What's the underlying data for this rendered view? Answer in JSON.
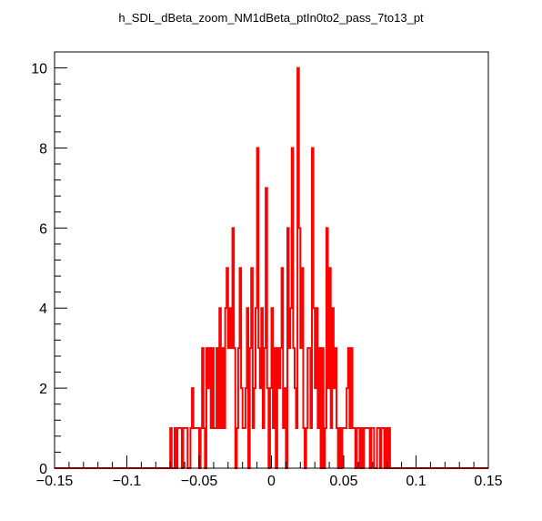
{
  "chart_data": {
    "type": "histogram",
    "title": "h_SDL_dBeta_zoom_NM1dBeta_ptIn0to2_pass_7to13_pt",
    "xlabel": "",
    "ylabel": "",
    "xlim": [
      -0.15,
      0.15
    ],
    "ylim": [
      0,
      10.4
    ],
    "grid": false,
    "legend": "none",
    "line_color": "#ff0000",
    "x_ticks": [
      -0.15,
      -0.1,
      -0.05,
      0,
      0.05,
      0.1,
      0.15
    ],
    "x_tick_labels": [
      "−0.15",
      "−0.1",
      "−0.05",
      "0",
      "0.05",
      "0.1",
      "0.15"
    ],
    "y_ticks": [
      0,
      2,
      4,
      6,
      8,
      10
    ],
    "y_tick_labels": [
      "0",
      "2",
      "4",
      "6",
      "8",
      "10"
    ],
    "bin_width": 0.001,
    "bin_start": -0.07,
    "counts": [
      1,
      0,
      0,
      1,
      0,
      1,
      1,
      1,
      0,
      1,
      1,
      1,
      0,
      0,
      1,
      2,
      1,
      1,
      1,
      1,
      0,
      1,
      3,
      1,
      0,
      3,
      2,
      3,
      1,
      3,
      1,
      1,
      3,
      1,
      4,
      1,
      3,
      1,
      4,
      5,
      3,
      4,
      3,
      6,
      3,
      0,
      1,
      3,
      5,
      2,
      1,
      1,
      2,
      4,
      0,
      3,
      5,
      1,
      2,
      4,
      8,
      3,
      2,
      4,
      1,
      3,
      7,
      2,
      0,
      2,
      4,
      1,
      3,
      0,
      3,
      2,
      3,
      5,
      1,
      2,
      0,
      6,
      3,
      4,
      8,
      3,
      2,
      1,
      10,
      6,
      3,
      5,
      1,
      0,
      1,
      3,
      3,
      1,
      8,
      4,
      2,
      4,
      1,
      3,
      0,
      3,
      0,
      1,
      6,
      2,
      5,
      1,
      4,
      2,
      3,
      1,
      0,
      1,
      0,
      1,
      1,
      1,
      2,
      3,
      1,
      3,
      1,
      1,
      0,
      1,
      1,
      0,
      1,
      0,
      1,
      1,
      1,
      1,
      0,
      1,
      1,
      0,
      0,
      1,
      1,
      0,
      1,
      1,
      0,
      1,
      0,
      1
    ]
  }
}
